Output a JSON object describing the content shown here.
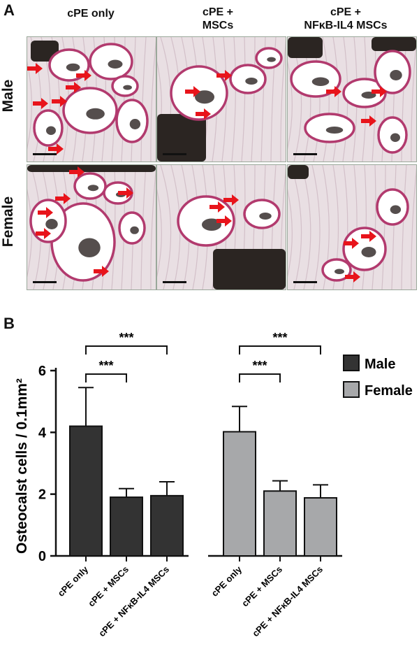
{
  "panelA": {
    "letter": "A",
    "columns": [
      "cPE only",
      "cPE +\nMSCs",
      "cPE +\nNFκB-IL4 MSCs"
    ],
    "rows": [
      "Male",
      "Female"
    ]
  },
  "panelB": {
    "letter": "B"
  },
  "colors": {
    "male": "#333333",
    "female": "#a7a8aa",
    "arrow": "#e8141b",
    "stain": "#b23a6e"
  },
  "chart_data": {
    "type": "bar",
    "categories": [
      "cPE only",
      "cPE + MSCs",
      "cPE + NFκB-IL4 MSCs"
    ],
    "series": [
      {
        "name": "Male",
        "values": [
          4.2,
          1.9,
          1.95
        ],
        "errors": [
          1.25,
          0.28,
          0.45
        ],
        "color": "#333333"
      },
      {
        "name": "Female",
        "values": [
          4.02,
          2.1,
          1.88
        ],
        "errors": [
          0.82,
          0.33,
          0.42
        ],
        "color": "#a7a8aa"
      }
    ],
    "ylabel": "Osteocalst cells / 0.1mm²",
    "ylim": [
      0,
      6
    ],
    "yticks": [
      0,
      2,
      4,
      6
    ],
    "significance": [
      {
        "group": "Male",
        "from": 0,
        "to": 1,
        "label": "***"
      },
      {
        "group": "Male",
        "from": 0,
        "to": 2,
        "label": "***"
      },
      {
        "group": "Female",
        "from": 0,
        "to": 1,
        "label": "***"
      },
      {
        "group": "Female",
        "from": 0,
        "to": 2,
        "label": "***"
      }
    ],
    "legend_position": "top-right",
    "grid": false
  }
}
